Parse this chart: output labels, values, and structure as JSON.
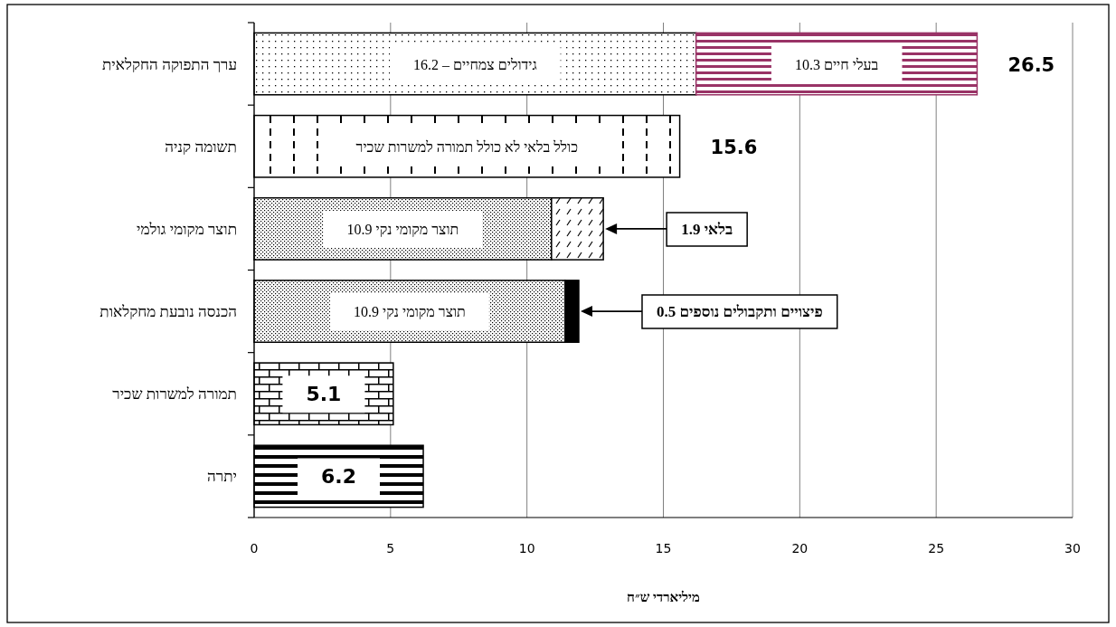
{
  "chart_data": {
    "type": "bar",
    "orientation": "horizontal",
    "stacked": true,
    "categories": [
      "ערך התפוקה החקלאית",
      "תשומה קניה",
      "תוצר מקומי גולמי",
      "הכנסה נובעת מחקלאות",
      "תמורה למשרות שכיר",
      "יתרה"
    ],
    "series": [
      {
        "color": "#000000",
        "values": [
          16.2,
          15.6,
          10.9,
          11.4,
          5.1,
          6.2
        ],
        "value_labels": [
          null,
          null,
          null,
          null,
          "5.1",
          "6.2"
        ]
      },
      {
        "colors": [
          "#993366",
          null,
          "#000000",
          "#000000",
          null,
          null
        ],
        "values": [
          10.3,
          null,
          1.9,
          0.5,
          null,
          null
        ]
      }
    ],
    "totals": [
      "26.5",
      "15.6",
      null,
      null,
      null,
      null
    ],
    "xlabel": "מיליארדי ש״ח",
    "xlim": [
      0,
      30
    ],
    "xticks": [
      0,
      5,
      10,
      15,
      20,
      25,
      30
    ],
    "grid": "x",
    "annotations": [
      {
        "text": "גידולים צמחיים – 16.2",
        "x": 8.1,
        "y": "ערך התפוקה החקלאית"
      },
      {
        "text": "בעלי חיים 10.3",
        "x": 21.35,
        "y": "ערך התפוקה החקלאית"
      },
      {
        "text": "כולל בלאי לא כולל תמורה למשרות שכיר",
        "x": 7.8,
        "y": "תשומה קניה"
      },
      {
        "text": "תוצר מקומי נקי 10.9",
        "x": 5.45,
        "y": "תוצר מקומי גולמי"
      },
      {
        "text": "תוצר מקומי נקי 10.9",
        "x": 5.7,
        "y": "הכנסה נובעת מחקלאות"
      },
      "בלאי 1.9",
      "פיצויים ותקבולים נוספים 0.5"
    ]
  }
}
